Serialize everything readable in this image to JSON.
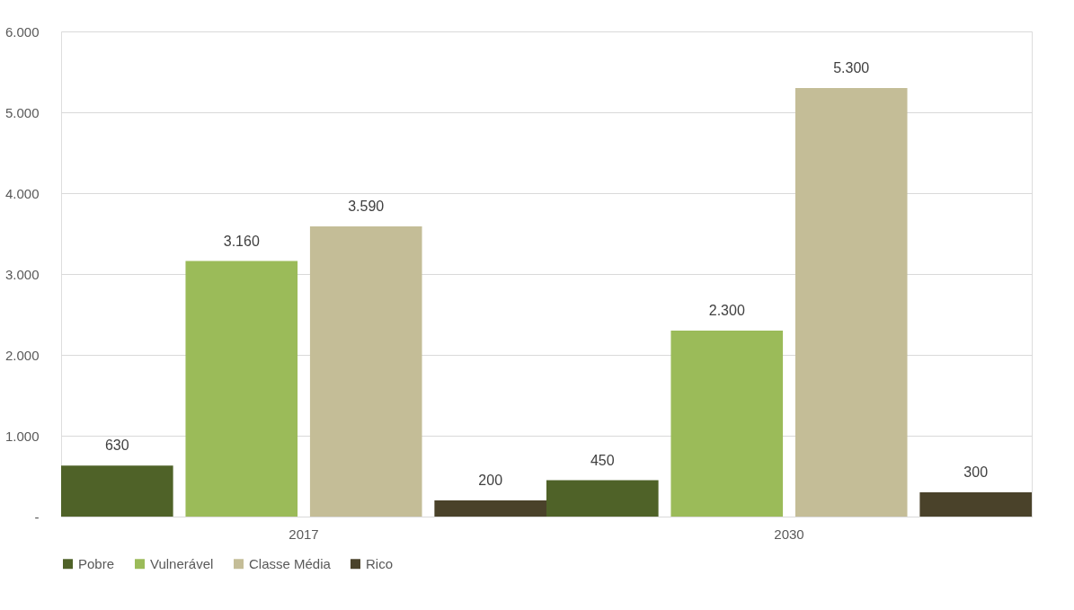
{
  "chart_data": {
    "type": "bar",
    "categories": [
      "2017",
      "2030"
    ],
    "series": [
      {
        "name": "Pobre",
        "color": "#4f6228",
        "values": [
          630,
          450
        ],
        "value_labels": [
          "630",
          "450"
        ]
      },
      {
        "name": "Vulnerável",
        "color": "#9bbb59",
        "values": [
          3160,
          2300
        ],
        "value_labels": [
          "3.160",
          "2.300"
        ]
      },
      {
        "name": "Classe Média",
        "color": "#c4bd97",
        "values": [
          3590,
          5300
        ],
        "value_labels": [
          "3.590",
          "5.300"
        ]
      },
      {
        "name": "Rico",
        "color": "#4a422a",
        "values": [
          200,
          300
        ],
        "value_labels": [
          "200",
          "300"
        ]
      }
    ],
    "ylim": [
      0,
      6000
    ],
    "yticks": [
      {
        "value": 0,
        "label": "-"
      },
      {
        "value": 1000,
        "label": "1.000"
      },
      {
        "value": 2000,
        "label": "2.000"
      },
      {
        "value": 3000,
        "label": "3.000"
      },
      {
        "value": 4000,
        "label": "4.000"
      },
      {
        "value": 5000,
        "label": "5.000"
      },
      {
        "value": 6000,
        "label": "6.000"
      }
    ],
    "grid": "y",
    "legend": "bottom"
  }
}
